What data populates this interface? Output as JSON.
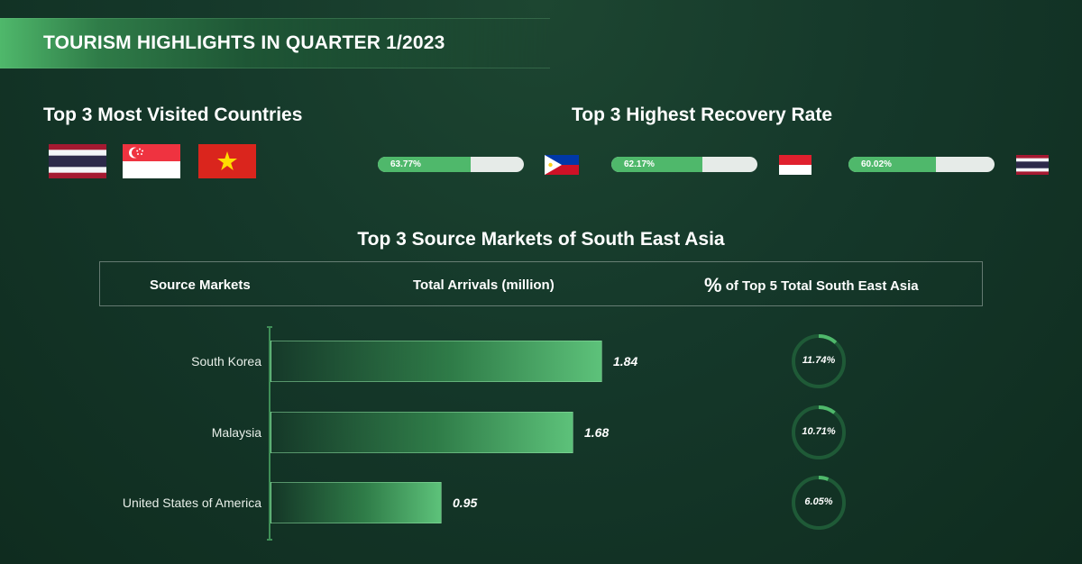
{
  "header": {
    "title": "TOURISM HIGHLIGHTS IN QUARTER 1/2023"
  },
  "visited": {
    "title": "Top 3 Most Visited Countries",
    "flags": [
      "thailand-flag",
      "singapore-flag",
      "vietnam-flag"
    ]
  },
  "recovery": {
    "title": "Top 3 Highest Recovery Rate",
    "items": [
      {
        "label": "63.77%",
        "value": 63.77,
        "flag": "philippines-flag"
      },
      {
        "label": "62.17%",
        "value": 62.17,
        "flag": "indonesia-flag"
      },
      {
        "label": "60.02%",
        "value": 60.02,
        "flag": "thailand-flag"
      }
    ]
  },
  "markets": {
    "title": "Top 3 Source Markets of South East Asia",
    "col_markets": "Source Markets",
    "col_arrivals": "Total Arrivals (million)",
    "col_pct_symbol": "%",
    "col_pct": "of Top 5 Total South East Asia"
  },
  "colors": {
    "accent": "#4fb86b",
    "background": "#123524",
    "track": "#e6ebe8"
  },
  "chart_data": {
    "type": "bar",
    "orientation": "horizontal",
    "categories": [
      "South Korea",
      "Malaysia",
      "United States of America"
    ],
    "values": [
      1.84,
      1.68,
      0.95
    ],
    "value_labels": [
      "1.84",
      "1.68",
      "0.95"
    ],
    "percent_values": [
      11.74,
      10.71,
      6.05
    ],
    "percent_labels": [
      "11.74%",
      "10.71%",
      "6.05%"
    ],
    "xlim": [
      0,
      3
    ]
  }
}
